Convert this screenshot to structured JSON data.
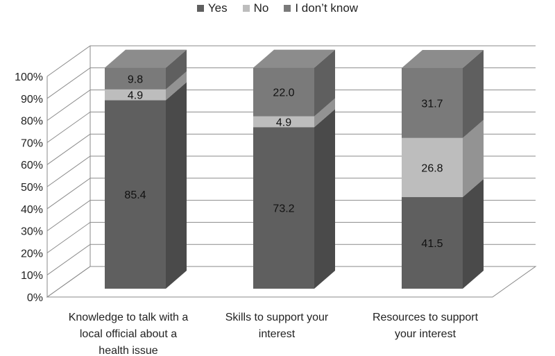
{
  "chart_data": {
    "type": "bar",
    "stacked": true,
    "three_d": true,
    "percent_axis": true,
    "categories": [
      [
        "Knowledge to talk with a",
        "local official about a",
        "health issue"
      ],
      [
        "Skills to support your",
        "interest"
      ],
      [
        "Resources to support",
        "your interest"
      ]
    ],
    "series": [
      {
        "name": "Yes",
        "values": [
          85.4,
          73.2,
          41.5
        ],
        "color": "#5f5f5f"
      },
      {
        "name": "No",
        "values": [
          4.9,
          4.9,
          26.8
        ],
        "color": "#bdbdbd"
      },
      {
        "name": "I don’t know",
        "values": [
          9.8,
          22.0,
          31.7
        ],
        "color": "#7a7a7a"
      }
    ],
    "data_labels": [
      [
        "85.4",
        "73.2",
        "41.5"
      ],
      [
        "4.9",
        "4.9",
        "26.8"
      ],
      [
        "9.8",
        "22.0",
        "31.7"
      ]
    ],
    "ylim": [
      0,
      100
    ],
    "yticks": [
      "0%",
      "10%",
      "20%",
      "30%",
      "40%",
      "50%",
      "60%",
      "70%",
      "80%",
      "90%",
      "100%"
    ],
    "legend_position": "top-center",
    "grid": true
  }
}
